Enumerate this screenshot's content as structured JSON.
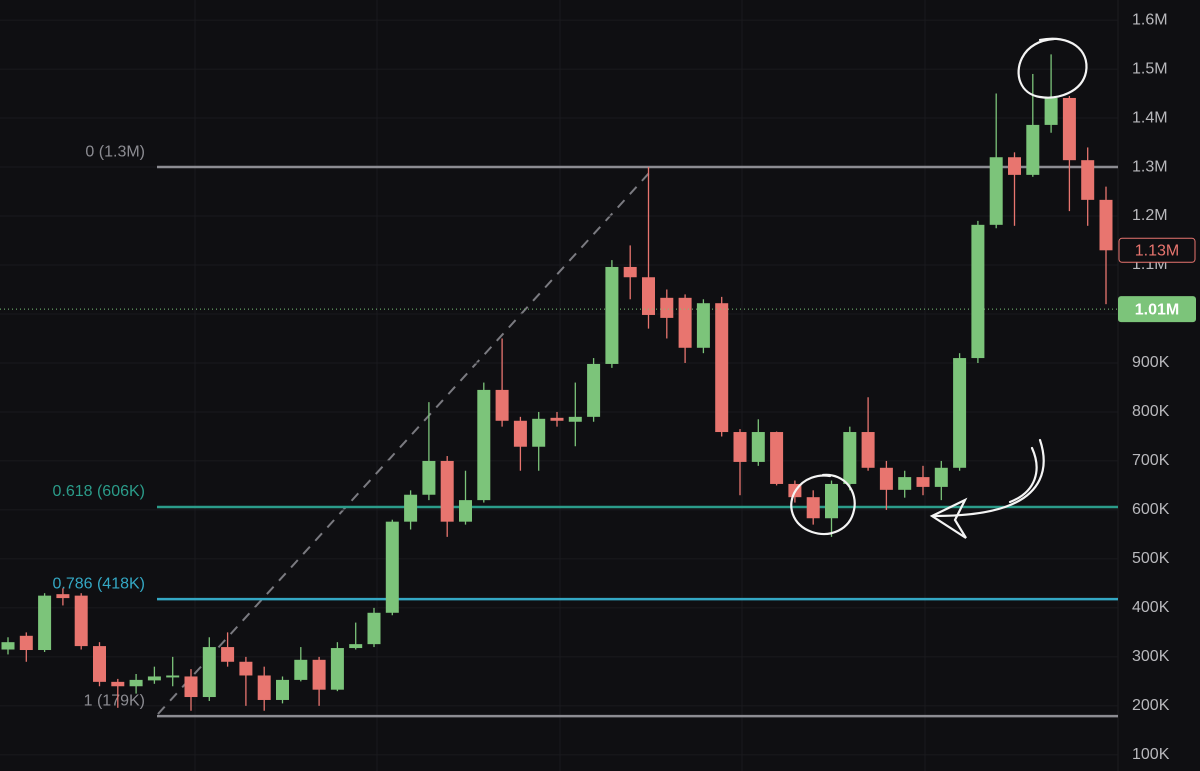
{
  "chart_data": {
    "type": "candlestick",
    "open": [
      315000,
      343000,
      314000,
      428000,
      425000,
      322000,
      249000,
      240000,
      252000,
      258000,
      260000,
      218000,
      320000,
      290000,
      262000,
      212000,
      253000,
      294000,
      233000,
      318000,
      326000,
      390000,
      576000,
      631000,
      700000,
      576000,
      620000,
      845000,
      782000,
      729000,
      788000,
      780000,
      790000,
      898000,
      1096000,
      1075000,
      1033000,
      1033000,
      931000,
      1022000,
      759000,
      698000,
      759000,
      653000,
      626000,
      583000,
      653000,
      759000,
      686000,
      641000,
      667000,
      647000,
      686000,
      910000,
      1182000,
      1320000,
      1284000,
      1386000,
      1441000,
      1314000,
      1233000
    ],
    "high": [
      340000,
      350000,
      430000,
      440000,
      430000,
      330000,
      255000,
      265000,
      280000,
      300000,
      275000,
      340000,
      350000,
      300000,
      280000,
      260000,
      320000,
      300000,
      330000,
      370000,
      400000,
      580000,
      640000,
      820000,
      710000,
      680000,
      860000,
      950000,
      790000,
      800000,
      800000,
      860000,
      910000,
      1110000,
      1140000,
      1300000,
      1050000,
      1040000,
      1030000,
      1035000,
      765000,
      785000,
      760000,
      660000,
      640000,
      660000,
      770000,
      830000,
      700000,
      680000,
      690000,
      700000,
      920000,
      1190000,
      1450000,
      1330000,
      1490000,
      1530000,
      1445000,
      1340000,
      1260000
    ],
    "low": [
      305000,
      290000,
      310000,
      405000,
      315000,
      240000,
      196000,
      225000,
      245000,
      240000,
      190000,
      210000,
      280000,
      200000,
      190000,
      205000,
      250000,
      200000,
      230000,
      315000,
      320000,
      385000,
      560000,
      620000,
      545000,
      570000,
      615000,
      770000,
      680000,
      680000,
      770000,
      730000,
      780000,
      890000,
      1030000,
      970000,
      950000,
      900000,
      920000,
      750000,
      630000,
      690000,
      650000,
      615000,
      570000,
      545000,
      640000,
      680000,
      600000,
      625000,
      630000,
      620000,
      680000,
      900000,
      1175000,
      1180000,
      1280000,
      1370000,
      1210000,
      1180000,
      1020000
    ],
    "close": [
      330000,
      314000,
      425000,
      420000,
      322000,
      249000,
      240000,
      253000,
      260000,
      262000,
      218000,
      320000,
      290000,
      262000,
      212000,
      253000,
      294000,
      233000,
      318000,
      326000,
      390000,
      576000,
      631000,
      700000,
      576000,
      620000,
      845000,
      782000,
      729000,
      786000,
      782000,
      790000,
      898000,
      1096000,
      1075000,
      998000,
      992000,
      931000,
      1022000,
      759000,
      698000,
      759000,
      653000,
      626000,
      583000,
      653000,
      759000,
      686000,
      641000,
      667000,
      647000,
      686000,
      910000,
      1182000,
      1320000,
      1284000,
      1386000,
      1441000,
      1314000,
      1233000,
      1130000
    ],
    "up_color": "#7cc47a",
    "down_color": "#e8756f",
    "ylim": [
      67000,
      1641000
    ],
    "yticks": [
      {
        "value": 100000,
        "label": "100K"
      },
      {
        "value": 200000,
        "label": "200K"
      },
      {
        "value": 300000,
        "label": "300K"
      },
      {
        "value": 400000,
        "label": "400K"
      },
      {
        "value": 500000,
        "label": "500K"
      },
      {
        "value": 600000,
        "label": "600K"
      },
      {
        "value": 700000,
        "label": "700K"
      },
      {
        "value": 800000,
        "label": "800K"
      },
      {
        "value": 900000,
        "label": "900K"
      },
      {
        "value": 1000000,
        "label": "1M"
      },
      {
        "value": 1100000,
        "label": "1.1M"
      },
      {
        "value": 1200000,
        "label": "1.2M"
      },
      {
        "value": 1300000,
        "label": "1.3M"
      },
      {
        "value": 1400000,
        "label": "1.4M"
      },
      {
        "value": 1500000,
        "label": "1.5M"
      },
      {
        "value": 1600000,
        "label": "1.6M"
      }
    ],
    "grid": true,
    "fib_levels": [
      {
        "label": "0 (1.3M)",
        "value": 1300000,
        "color": "#8c8c92"
      },
      {
        "label": "0.618 (606K)",
        "value": 606000,
        "color": "#2b9c8a"
      },
      {
        "label": "0.786 (418K)",
        "value": 418000,
        "color": "#34a8c4"
      },
      {
        "label": "1 (179K)",
        "value": 179000,
        "color": "#8c8c92"
      }
    ],
    "price_tags": [
      {
        "label": "1.13M",
        "value": 1130000,
        "color": "#e8756f",
        "style": "outline"
      },
      {
        "label": "1.01M",
        "value": 1010000,
        "color": "#7cc47a",
        "style": "filled"
      }
    ]
  }
}
